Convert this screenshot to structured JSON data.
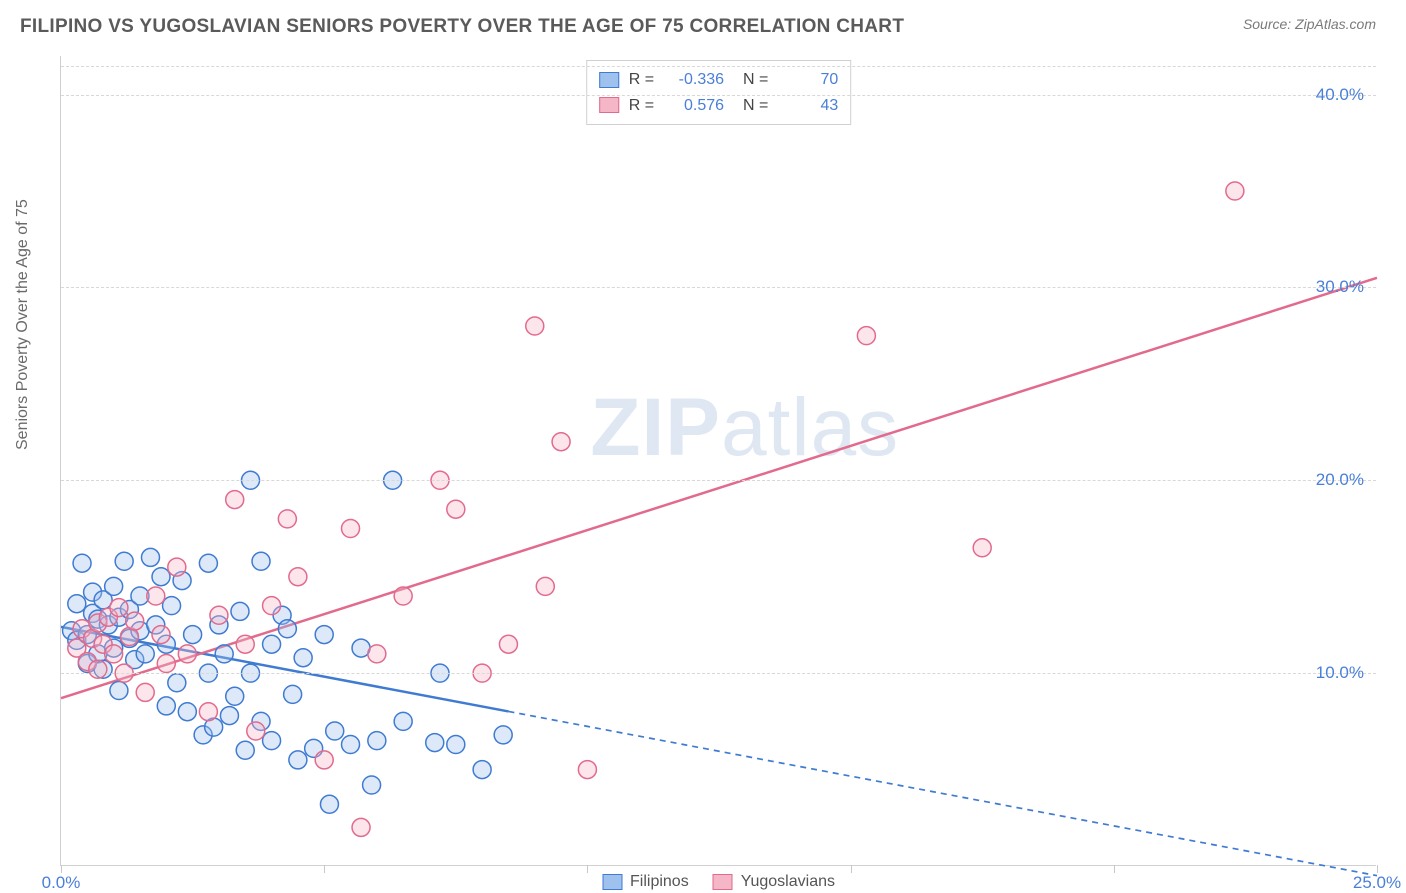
{
  "header": {
    "title": "FILIPINO VS YUGOSLAVIAN SENIORS POVERTY OVER THE AGE OF 75 CORRELATION CHART",
    "source_prefix": "Source: ",
    "source": "ZipAtlas.com"
  },
  "chart": {
    "type": "scatter",
    "ylabel": "Seniors Poverty Over the Age of 75",
    "watermark_bold": "ZIP",
    "watermark_rest": "atlas",
    "background_color": "#ffffff",
    "grid_color": "#d8d8d8",
    "axis_color": "#d0d0d0",
    "tick_label_color": "#4a7fd8",
    "xlim": [
      0,
      25
    ],
    "ylim": [
      0,
      42
    ],
    "xticks": [
      0,
      5,
      10,
      15,
      20,
      25
    ],
    "xtick_labels": [
      "0.0%",
      "",
      "",
      "",
      "",
      "25.0%"
    ],
    "yticks": [
      10,
      20,
      30,
      40
    ],
    "ytick_labels": [
      "10.0%",
      "20.0%",
      "30.0%",
      "40.0%"
    ],
    "marker_radius": 9,
    "marker_stroke_width": 1.5,
    "marker_fill_opacity": 0.35,
    "trend_line_width": 2.5,
    "trend_dash_pattern": "6,5",
    "series": [
      {
        "name": "Filipinos",
        "color_stroke": "#3f7bd1",
        "color_fill": "#9ec1ed",
        "r": -0.336,
        "n": 70,
        "regression": {
          "x1": 0,
          "y1": 12.4,
          "x2": 25,
          "y2": -0.5,
          "solid_until_x": 8.5
        },
        "points": [
          [
            0.2,
            12.2
          ],
          [
            0.3,
            13.6
          ],
          [
            0.3,
            11.7
          ],
          [
            0.4,
            15.7
          ],
          [
            0.5,
            12.0
          ],
          [
            0.5,
            10.5
          ],
          [
            0.6,
            13.1
          ],
          [
            0.6,
            14.2
          ],
          [
            0.7,
            11.0
          ],
          [
            0.7,
            12.8
          ],
          [
            0.8,
            13.8
          ],
          [
            0.8,
            10.2
          ],
          [
            0.9,
            12.5
          ],
          [
            1.0,
            14.5
          ],
          [
            1.0,
            11.3
          ],
          [
            1.1,
            12.9
          ],
          [
            1.1,
            9.1
          ],
          [
            1.2,
            15.8
          ],
          [
            1.3,
            11.8
          ],
          [
            1.3,
            13.3
          ],
          [
            1.4,
            10.7
          ],
          [
            1.5,
            12.2
          ],
          [
            1.5,
            14.0
          ],
          [
            1.6,
            11.0
          ],
          [
            1.7,
            16.0
          ],
          [
            1.8,
            12.5
          ],
          [
            1.9,
            15.0
          ],
          [
            2.0,
            8.3
          ],
          [
            2.0,
            11.5
          ],
          [
            2.1,
            13.5
          ],
          [
            2.2,
            9.5
          ],
          [
            2.3,
            14.8
          ],
          [
            2.4,
            8.0
          ],
          [
            2.5,
            12.0
          ],
          [
            2.7,
            6.8
          ],
          [
            2.8,
            10.0
          ],
          [
            2.8,
            15.7
          ],
          [
            2.9,
            7.2
          ],
          [
            3.0,
            12.5
          ],
          [
            3.1,
            11.0
          ],
          [
            3.2,
            7.8
          ],
          [
            3.3,
            8.8
          ],
          [
            3.4,
            13.2
          ],
          [
            3.5,
            6.0
          ],
          [
            3.6,
            20.0
          ],
          [
            3.6,
            10.0
          ],
          [
            3.8,
            7.5
          ],
          [
            3.8,
            15.8
          ],
          [
            4.0,
            11.5
          ],
          [
            4.0,
            6.5
          ],
          [
            4.2,
            13.0
          ],
          [
            4.3,
            12.3
          ],
          [
            4.4,
            8.9
          ],
          [
            4.5,
            5.5
          ],
          [
            4.6,
            10.8
          ],
          [
            4.8,
            6.1
          ],
          [
            5.0,
            12.0
          ],
          [
            5.1,
            3.2
          ],
          [
            5.2,
            7.0
          ],
          [
            5.5,
            6.3
          ],
          [
            5.7,
            11.3
          ],
          [
            5.9,
            4.2
          ],
          [
            6.0,
            6.5
          ],
          [
            6.3,
            20.0
          ],
          [
            6.5,
            7.5
          ],
          [
            7.1,
            6.4
          ],
          [
            7.2,
            10.0
          ],
          [
            7.5,
            6.3
          ],
          [
            8.0,
            5.0
          ],
          [
            8.4,
            6.8
          ]
        ]
      },
      {
        "name": "Yugoslavians",
        "color_stroke": "#e26a8d",
        "color_fill": "#f5b6c8",
        "r": 0.576,
        "n": 43,
        "regression": {
          "x1": 0,
          "y1": 8.7,
          "x2": 25,
          "y2": 30.5,
          "solid_until_x": 25
        },
        "points": [
          [
            0.3,
            11.3
          ],
          [
            0.4,
            12.3
          ],
          [
            0.5,
            10.6
          ],
          [
            0.6,
            11.8
          ],
          [
            0.7,
            12.6
          ],
          [
            0.7,
            10.2
          ],
          [
            0.8,
            11.5
          ],
          [
            0.9,
            12.9
          ],
          [
            1.0,
            11.0
          ],
          [
            1.1,
            13.4
          ],
          [
            1.2,
            10.0
          ],
          [
            1.3,
            11.9
          ],
          [
            1.4,
            12.7
          ],
          [
            1.6,
            9.0
          ],
          [
            1.8,
            14.0
          ],
          [
            1.9,
            12.0
          ],
          [
            2.0,
            10.5
          ],
          [
            2.2,
            15.5
          ],
          [
            2.4,
            11.0
          ],
          [
            2.8,
            8.0
          ],
          [
            3.0,
            13.0
          ],
          [
            3.3,
            19.0
          ],
          [
            3.5,
            11.5
          ],
          [
            3.7,
            7.0
          ],
          [
            4.0,
            13.5
          ],
          [
            4.3,
            18.0
          ],
          [
            4.5,
            15.0
          ],
          [
            5.0,
            5.5
          ],
          [
            5.5,
            17.5
          ],
          [
            5.7,
            2.0
          ],
          [
            6.0,
            11.0
          ],
          [
            6.5,
            14.0
          ],
          [
            7.2,
            20.0
          ],
          [
            7.5,
            18.5
          ],
          [
            8.0,
            10.0
          ],
          [
            8.5,
            11.5
          ],
          [
            9.0,
            28.0
          ],
          [
            9.2,
            14.5
          ],
          [
            9.5,
            22.0
          ],
          [
            10.0,
            5.0
          ],
          [
            15.3,
            27.5
          ],
          [
            17.5,
            16.5
          ],
          [
            22.3,
            35.0
          ]
        ]
      }
    ],
    "legend_bottom_labels": [
      "Filipinos",
      "Yugoslavians"
    ]
  }
}
